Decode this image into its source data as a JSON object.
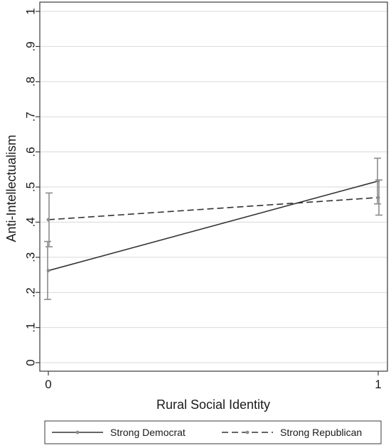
{
  "chart_data": {
    "type": "line",
    "xlabel": "Rural Social Identity",
    "ylabel": "Anti-Intellectualism",
    "x": [
      0,
      1
    ],
    "x_tick_labels": [
      "0",
      "1"
    ],
    "xlim": [
      0,
      1
    ],
    "ylim": [
      0,
      1
    ],
    "y_ticks": [
      0,
      0.1,
      0.2,
      0.3,
      0.4,
      0.5,
      0.6,
      0.7,
      0.8,
      0.9,
      1
    ],
    "y_tick_labels": [
      "0",
      ".1",
      ".2",
      ".3",
      ".4",
      ".5",
      ".6",
      ".7",
      ".8",
      ".9",
      "1"
    ],
    "grid": true,
    "legend_position": "bottom",
    "series": [
      {
        "name": "Strong Democrat",
        "values": [
          0.262,
          0.517
        ],
        "ci_low": [
          0.18,
          0.452
        ],
        "ci_high": [
          0.345,
          0.582
        ],
        "line_style": "solid",
        "color": "#333333"
      },
      {
        "name": "Strong Republican",
        "values": [
          0.407,
          0.47
        ],
        "ci_low": [
          0.33,
          0.42
        ],
        "ci_high": [
          0.483,
          0.52
        ],
        "line_style": "dashed",
        "color": "#333333"
      }
    ]
  }
}
